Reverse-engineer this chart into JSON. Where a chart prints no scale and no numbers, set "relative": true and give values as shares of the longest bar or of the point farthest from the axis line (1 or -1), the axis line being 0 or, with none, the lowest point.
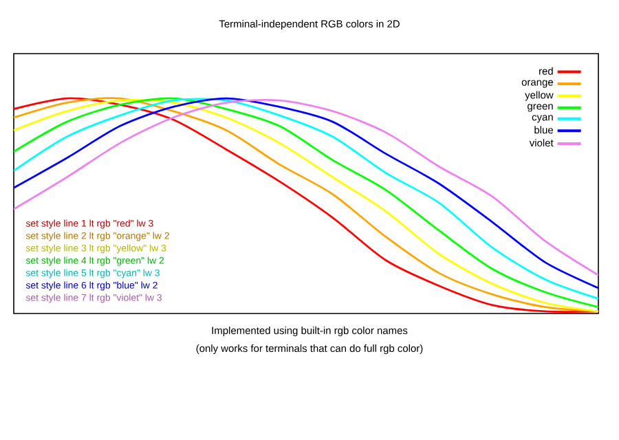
{
  "chart_data": {
    "type": "line",
    "title": "Terminal-independent RGB colors in 2D",
    "xlabel": "Implemented using built-in rgb color names",
    "relative": true,
    "legend": "top right",
    "categories": [
      null,
      null,
      null,
      null,
      null,
      null,
      null,
      null,
      null,
      null,
      null,
      null
    ],
    "series": [
      {
        "name": "red",
        "color": "#ff0000",
        "values": [
          0.95,
          1.0,
          0.97,
          0.9,
          0.76,
          0.61,
          0.44,
          0.24,
          0.12,
          0.03,
          0,
          0
        ]
      },
      {
        "name": "orange",
        "color": "#ffa500",
        "values": [
          0.91,
          0.98,
          1.0,
          0.94,
          0.85,
          0.69,
          0.55,
          0.35,
          0.18,
          0.08,
          0.02,
          0
        ]
      },
      {
        "name": "yellow",
        "color": "#ffff00",
        "values": [
          0.85,
          0.94,
          0.99,
          0.98,
          0.91,
          0.79,
          0.63,
          0.47,
          0.27,
          0.13,
          0.04,
          0
        ]
      },
      {
        "name": "green",
        "color": "#00ff00",
        "values": [
          0.75,
          0.89,
          0.97,
          1.0,
          0.95,
          0.87,
          0.71,
          0.57,
          0.38,
          0.2,
          0.09,
          0.02
        ]
      },
      {
        "name": "cyan",
        "color": "#00ffff",
        "values": [
          0.66,
          0.82,
          0.92,
          0.99,
          0.99,
          0.92,
          0.82,
          0.65,
          0.51,
          0.3,
          0.15,
          0.06
        ]
      },
      {
        "name": "blue",
        "color": "#0000ff",
        "values": [
          0.58,
          0.72,
          0.87,
          0.96,
          1.0,
          0.96,
          0.89,
          0.74,
          0.6,
          0.42,
          0.23,
          0.11
        ]
      },
      {
        "name": "violet",
        "color": "#ee82ee",
        "values": [
          0.48,
          0.63,
          0.79,
          0.91,
          0.98,
          0.99,
          0.94,
          0.84,
          0.68,
          0.54,
          0.33,
          0.17
        ]
      }
    ],
    "annotations": [
      "set style line 1 lt rgb \"red\" lw 3",
      "set style line 2 lt rgb \"orange\" lw 2",
      "set style line 3 lt rgb \"yellow\" lw 3",
      "set style line 4 lt rgb \"green\" lw 2",
      "set style line 5 lt rgb \"cyan\" lw 3",
      "set style line 6 lt rgb \"blue\" lw 2",
      "set style line 7 lt rgb \"violet\" lw 3",
      "(only works for terminals that can do full rgb color)"
    ]
  }
}
